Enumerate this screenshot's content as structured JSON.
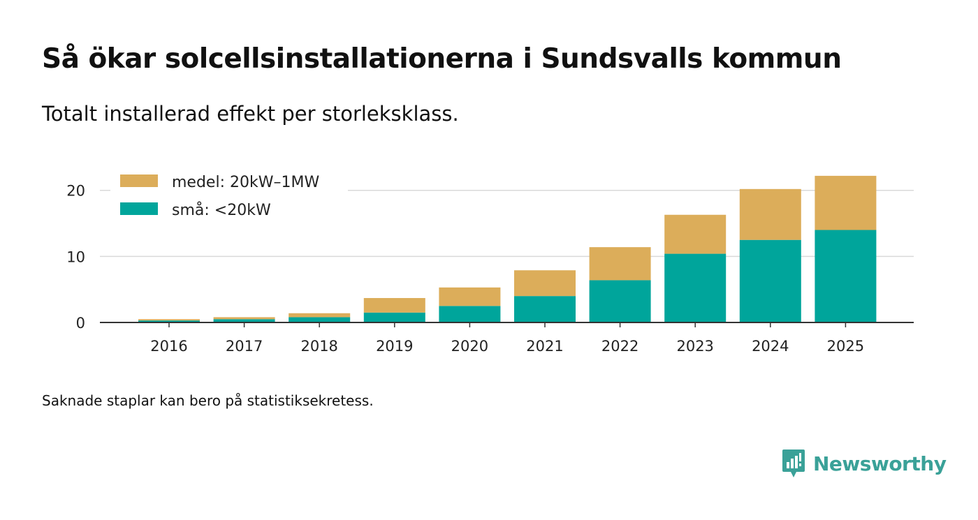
{
  "title": "Så ökar solcellsinstallationerna i Sundsvalls kommun",
  "subtitle": "Totalt installerad effekt per storleksklass.",
  "note": "Saknade staplar kan bero på statistiksekretess.",
  "brand": {
    "name": "Newsworthy",
    "color": "#3aa198"
  },
  "chart_data": {
    "type": "bar",
    "stacked": true,
    "categories": [
      "2016",
      "2017",
      "2018",
      "2019",
      "2020",
      "2021",
      "2022",
      "2023",
      "2024",
      "2025"
    ],
    "series": [
      {
        "name": "små: <20kW",
        "color": "#00a59b",
        "values": [
          0.3,
          0.5,
          0.8,
          1.5,
          2.5,
          4.0,
          6.4,
          10.4,
          12.5,
          14.0
        ]
      },
      {
        "name": "medel: 20kW–1MW",
        "color": "#dcad5a",
        "values": [
          0.2,
          0.3,
          0.6,
          2.2,
          2.8,
          3.9,
          5.0,
          5.9,
          7.7,
          8.2
        ]
      }
    ],
    "yticks": [
      "0",
      "10",
      "20"
    ],
    "ylim": [
      0,
      22.4
    ],
    "legend_position": "top-left",
    "grid": true
  }
}
